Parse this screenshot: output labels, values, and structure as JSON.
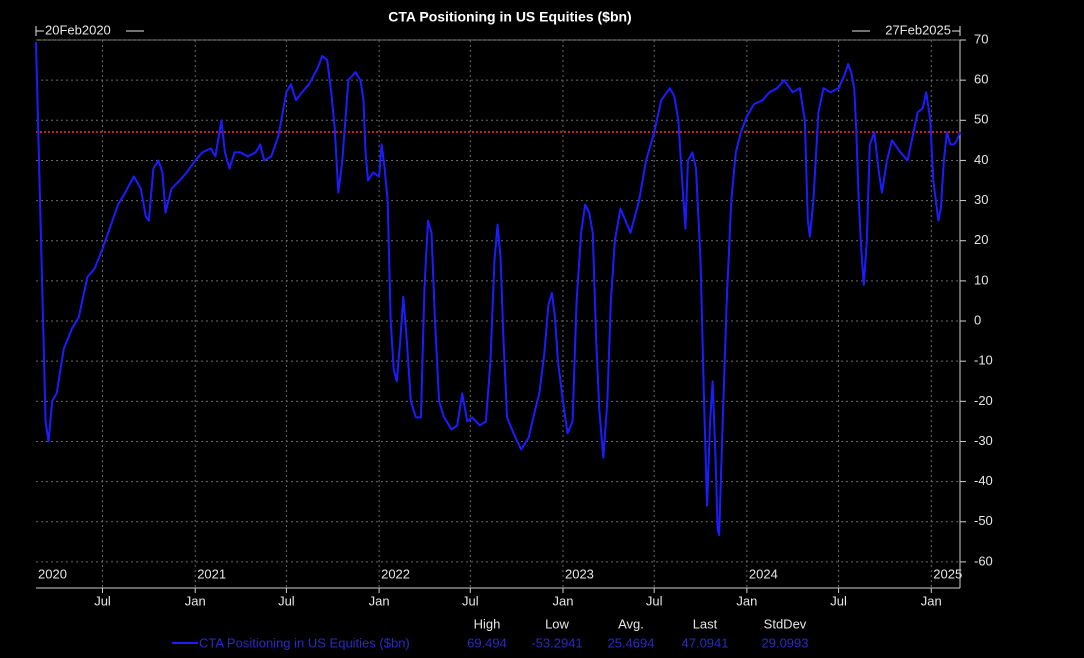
{
  "chart_data": {
    "type": "line",
    "title": "CTA Positioning in US Equities ($bn)",
    "xlim": [
      {
        "value": "2020-02-20",
        "label": "20Feb2020"
      },
      {
        "value": "2025-02-27",
        "label": "27Feb2025"
      }
    ],
    "xticks": [
      {
        "value": "2020-07-01",
        "label": "Jul"
      },
      {
        "value": "2021-01-01",
        "label": "Jan"
      },
      {
        "value": "2021-07-01",
        "label": "Jul"
      },
      {
        "value": "2022-01-01",
        "label": "Jan"
      },
      {
        "value": "2022-07-01",
        "label": "Jul"
      },
      {
        "value": "2023-01-01",
        "label": "Jan"
      },
      {
        "value": "2023-07-01",
        "label": "Jul"
      },
      {
        "value": "2024-01-01",
        "label": "Jan"
      },
      {
        "value": "2024-07-01",
        "label": "Jul"
      },
      {
        "value": "2025-01-01",
        "label": "Jan"
      }
    ],
    "year_labels": [
      {
        "value": "2020-02-20",
        "label": "2020"
      },
      {
        "value": "2021-01-01",
        "label": "2021"
      },
      {
        "value": "2022-01-01",
        "label": "2022"
      },
      {
        "value": "2023-01-01",
        "label": "2023"
      },
      {
        "value": "2024-01-01",
        "label": "2024"
      },
      {
        "value": "2025-01-01",
        "label": "2025"
      }
    ],
    "ylim": [
      -66.5,
      70
    ],
    "yticks": [
      -60,
      -50,
      -40,
      -30,
      -20,
      -10,
      0,
      10,
      20,
      30,
      40,
      50,
      60,
      70
    ],
    "grid": true,
    "reference_line": {
      "value": 47.0941,
      "color": "#ff2a2a"
    },
    "x": [
      "2020-02-20",
      "2020-03-03",
      "2020-03-10",
      "2020-03-16",
      "2020-03-23",
      "2020-04-01",
      "2020-04-15",
      "2020-05-01",
      "2020-05-15",
      "2020-06-01",
      "2020-06-15",
      "2020-07-01",
      "2020-07-15",
      "2020-08-01",
      "2020-08-15",
      "2020-09-01",
      "2020-09-15",
      "2020-09-25",
      "2020-10-01",
      "2020-10-10",
      "2020-10-20",
      "2020-10-28",
      "2020-11-03",
      "2020-11-15",
      "2020-12-01",
      "2020-12-15",
      "2021-01-01",
      "2021-01-15",
      "2021-02-01",
      "2021-02-10",
      "2021-02-18",
      "2021-02-22",
      "2021-03-01",
      "2021-03-10",
      "2021-03-20",
      "2021-04-01",
      "2021-04-15",
      "2021-05-01",
      "2021-05-10",
      "2021-05-18",
      "2021-06-01",
      "2021-06-15",
      "2021-07-01",
      "2021-07-10",
      "2021-07-20",
      "2021-08-01",
      "2021-08-15",
      "2021-09-01",
      "2021-09-10",
      "2021-09-20",
      "2021-09-28",
      "2021-10-05",
      "2021-10-12",
      "2021-10-20",
      "2021-11-01",
      "2021-11-15",
      "2021-11-25",
      "2021-12-01",
      "2021-12-05",
      "2021-12-10",
      "2021-12-20",
      "2022-01-01",
      "2022-01-06",
      "2022-01-12",
      "2022-01-18",
      "2022-01-24",
      "2022-01-30",
      "2022-02-05",
      "2022-02-12",
      "2022-02-18",
      "2022-02-25",
      "2022-03-05",
      "2022-03-15",
      "2022-03-25",
      "2022-04-01",
      "2022-04-08",
      "2022-04-15",
      "2022-04-22",
      "2022-04-30",
      "2022-05-10",
      "2022-05-25",
      "2022-06-05",
      "2022-06-15",
      "2022-06-25",
      "2022-07-05",
      "2022-07-20",
      "2022-08-01",
      "2022-08-10",
      "2022-08-18",
      "2022-08-24",
      "2022-08-30",
      "2022-09-05",
      "2022-09-12",
      "2022-09-25",
      "2022-10-10",
      "2022-10-25",
      "2022-11-05",
      "2022-11-15",
      "2022-11-25",
      "2022-12-03",
      "2022-12-10",
      "2022-12-16",
      "2022-12-22",
      "2023-01-01",
      "2023-01-10",
      "2023-01-20",
      "2023-01-28",
      "2023-02-06",
      "2023-02-14",
      "2023-02-22",
      "2023-03-01",
      "2023-03-08",
      "2023-03-14",
      "2023-03-22",
      "2023-03-30",
      "2023-04-06",
      "2023-04-14",
      "2023-04-25",
      "2023-05-05",
      "2023-05-15",
      "2023-06-01",
      "2023-06-15",
      "2023-07-01",
      "2023-07-15",
      "2023-08-01",
      "2023-08-10",
      "2023-08-18",
      "2023-08-25",
      "2023-09-01",
      "2023-09-06",
      "2023-09-15",
      "2023-09-22",
      "2023-10-01",
      "2023-10-08",
      "2023-10-14",
      "2023-10-20",
      "2023-10-25",
      "2023-10-31",
      "2023-11-04",
      "2023-11-07",
      "2023-11-14",
      "2023-11-22",
      "2023-12-01",
      "2023-12-10",
      "2023-12-20",
      "2024-01-01",
      "2024-01-15",
      "2024-02-01",
      "2024-02-15",
      "2024-03-01",
      "2024-03-15",
      "2024-04-01",
      "2024-04-15",
      "2024-04-25",
      "2024-05-01",
      "2024-05-05",
      "2024-05-12",
      "2024-05-22",
      "2024-06-01",
      "2024-06-15",
      "2024-07-01",
      "2024-07-12",
      "2024-07-20",
      "2024-07-26",
      "2024-08-01",
      "2024-08-05",
      "2024-08-10",
      "2024-08-15",
      "2024-08-20",
      "2024-08-26",
      "2024-09-01",
      "2024-09-10",
      "2024-09-18",
      "2024-09-25",
      "2024-10-05",
      "2024-10-15",
      "2024-11-01",
      "2024-11-15",
      "2024-11-25",
      "2024-12-05",
      "2024-12-15",
      "2024-12-22",
      "2024-12-30",
      "2025-01-05",
      "2025-01-10",
      "2025-01-15",
      "2025-01-20",
      "2025-01-26",
      "2025-02-01",
      "2025-02-08",
      "2025-02-15",
      "2025-02-21",
      "2025-02-27"
    ],
    "series": [
      {
        "name": "CTA Positioning in US Equities ($bn)",
        "color": "#1c1cff",
        "values": [
          69.494,
          10,
          -25,
          -30,
          -20,
          -18,
          -7,
          -2,
          1,
          11,
          13,
          18,
          23,
          29,
          32,
          36,
          33,
          26,
          25,
          38,
          40,
          37,
          27,
          33,
          35,
          37,
          40,
          42,
          43,
          41,
          47,
          50,
          42,
          38,
          42,
          42,
          41,
          42,
          44,
          40,
          41,
          46,
          57,
          59,
          55,
          57,
          59,
          63,
          66,
          65,
          57,
          48,
          32,
          40,
          60,
          62,
          60,
          55,
          42,
          35,
          37,
          36,
          44,
          38,
          30,
          0,
          -12,
          -15,
          -5,
          6,
          -5,
          -20,
          -24,
          -24,
          8,
          25,
          22,
          0,
          -20,
          -24,
          -27,
          -26,
          -18,
          -25,
          -24,
          -26,
          -25,
          -10,
          15,
          24,
          16,
          -5,
          -24,
          -28,
          -32,
          -29,
          -23,
          -18,
          -8,
          4,
          7,
          1,
          -10,
          -20,
          -28,
          -25,
          5,
          22,
          29,
          27,
          22,
          -5,
          -22,
          -34,
          -20,
          5,
          20,
          28,
          25,
          22,
          30,
          40,
          47,
          55,
          58,
          56,
          50,
          36,
          23,
          40,
          42,
          38,
          15,
          -20,
          -46,
          -25,
          -15,
          -35,
          -52,
          -53.2941,
          -25,
          5,
          30,
          42,
          47,
          51,
          54,
          55,
          57,
          58,
          60,
          57,
          58,
          50,
          25,
          21,
          30,
          52,
          58,
          57,
          58,
          61,
          64,
          62,
          58,
          48,
          30,
          18,
          9,
          20,
          44,
          47,
          38,
          32,
          40,
          45,
          42,
          40,
          46,
          52,
          53,
          57,
          50,
          35,
          30,
          25,
          28,
          40,
          47,
          44,
          44,
          45,
          47.0941
        ]
      }
    ],
    "stats": {
      "labels": [
        "High",
        "Low",
        "Avg.",
        "Last",
        "StdDev"
      ],
      "values": [
        69.494,
        -53.2941,
        25.4694,
        47.0941,
        29.0993
      ]
    }
  }
}
